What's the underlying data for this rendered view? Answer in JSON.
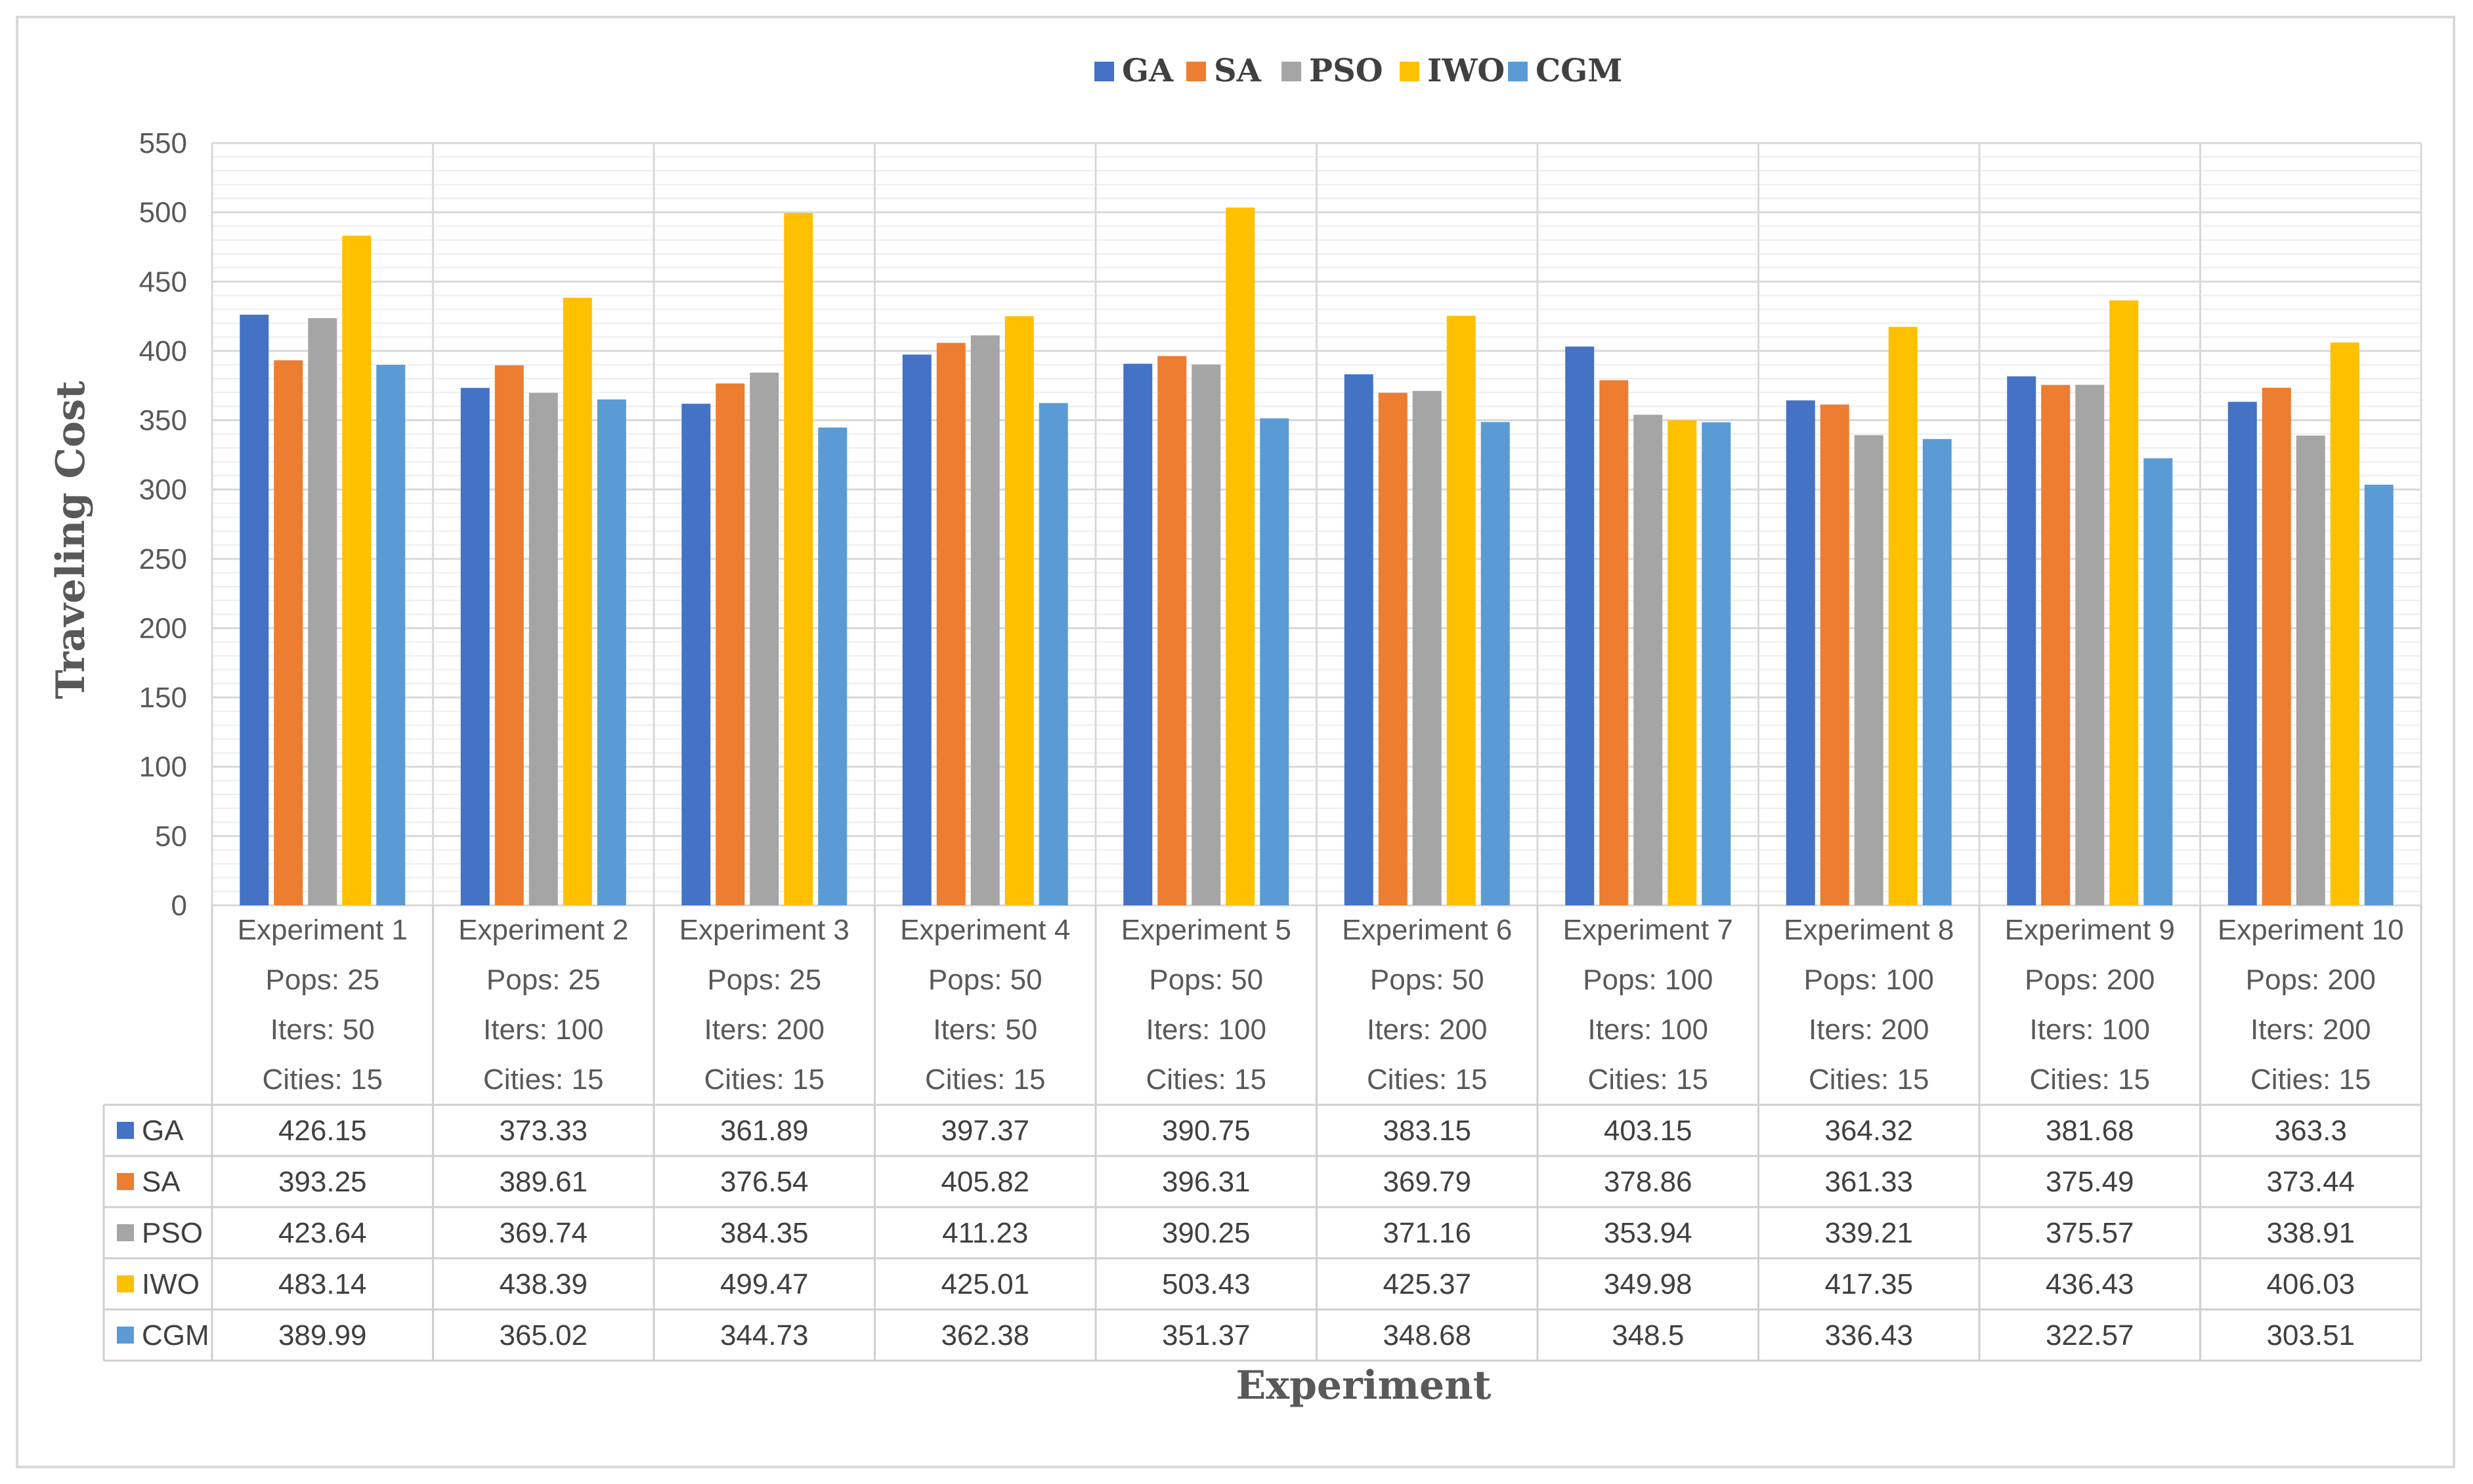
{
  "chart_data": {
    "type": "bar",
    "title": "",
    "xlabel": "Experiment",
    "ylabel": "Traveling Cost",
    "ylim": [
      0,
      550
    ],
    "yticks": [
      0,
      50,
      100,
      150,
      200,
      250,
      300,
      350,
      400,
      450,
      500,
      550
    ],
    "grid": true,
    "legend_position": "top-center",
    "categories": [
      [
        "Experiment 1",
        "Pops: 25",
        "Iters: 50",
        "Cities: 15"
      ],
      [
        "Experiment 2",
        "Pops: 25",
        "Iters: 100",
        "Cities: 15"
      ],
      [
        "Experiment 3",
        "Pops: 25",
        "Iters: 200",
        "Cities: 15"
      ],
      [
        "Experiment 4",
        "Pops: 50",
        "Iters: 50",
        "Cities: 15"
      ],
      [
        "Experiment 5",
        "Pops: 50",
        "Iters: 100",
        "Cities: 15"
      ],
      [
        "Experiment 6",
        "Pops: 50",
        "Iters: 200",
        "Cities: 15"
      ],
      [
        "Experiment 7",
        "Pops: 100",
        "Iters: 100",
        "Cities: 15"
      ],
      [
        "Experiment 8",
        "Pops: 100",
        "Iters: 200",
        "Cities: 15"
      ],
      [
        "Experiment 9",
        "Pops: 200",
        "Iters: 100",
        "Cities: 15"
      ],
      [
        "Experiment 10",
        "Pops: 200",
        "Iters: 200",
        "Cities: 15"
      ]
    ],
    "series": [
      {
        "name": "GA",
        "color": "#4472c4",
        "values": [
          426.15,
          373.33,
          361.89,
          397.37,
          390.75,
          383.15,
          403.15,
          364.32,
          381.68,
          363.3
        ],
        "labels": [
          "426.15",
          "373.33",
          "361.89",
          "397.37",
          "390.75",
          "383.15",
          "403.15",
          "364.32",
          "381.68",
          "363.3"
        ]
      },
      {
        "name": "SA",
        "color": "#ed7d31",
        "values": [
          393.25,
          389.61,
          376.54,
          405.82,
          396.31,
          369.79,
          378.86,
          361.33,
          375.49,
          373.44
        ],
        "labels": [
          "393.25",
          "389.61",
          "376.54",
          "405.82",
          "396.31",
          "369.79",
          "378.86",
          "361.33",
          "375.49",
          "373.44"
        ]
      },
      {
        "name": "PSO",
        "color": "#a5a5a5",
        "values": [
          423.64,
          369.74,
          384.35,
          411.23,
          390.25,
          371.16,
          353.94,
          339.21,
          375.57,
          338.91
        ],
        "labels": [
          "423.64",
          "369.74",
          "384.35",
          "411.23",
          "390.25",
          "371.16",
          "353.94",
          "339.21",
          "375.57",
          "338.91"
        ]
      },
      {
        "name": "IWO",
        "color": "#ffc000",
        "values": [
          483.14,
          438.39,
          499.47,
          425.01,
          503.43,
          425.37,
          349.98,
          417.35,
          436.43,
          406.03
        ],
        "labels": [
          "483.14",
          "438.39",
          "499.47",
          "425.01",
          "503.43",
          "425.37",
          "349.98",
          "417.35",
          "436.43",
          "406.03"
        ]
      },
      {
        "name": "CGM",
        "color": "#5b9bd5",
        "values": [
          389.99,
          365.02,
          344.73,
          362.38,
          351.37,
          348.68,
          348.5,
          336.43,
          322.57,
          303.51
        ],
        "labels": [
          "389.99",
          "365.02",
          "344.73",
          "362.38",
          "351.37",
          "348.68",
          "348.5",
          "336.43",
          "322.57",
          "303.51"
        ]
      }
    ]
  }
}
